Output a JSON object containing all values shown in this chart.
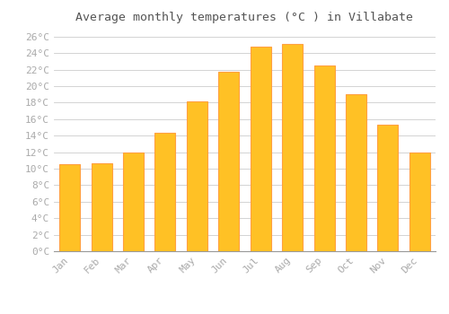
{
  "title": "Average monthly temperatures (°C ) in Villabate",
  "months": [
    "Jan",
    "Feb",
    "Mar",
    "Apr",
    "May",
    "Jun",
    "Jul",
    "Aug",
    "Sep",
    "Oct",
    "Nov",
    "Dec"
  ],
  "values": [
    10.5,
    10.7,
    12.0,
    14.3,
    18.1,
    21.7,
    24.8,
    25.1,
    22.5,
    19.0,
    15.3,
    12.0
  ],
  "bar_color": "#FFC125",
  "bar_edge_color": "#FFA040",
  "background_color": "#ffffff",
  "grid_color": "#cccccc",
  "ylim": [
    0,
    27
  ],
  "yticks": [
    0,
    2,
    4,
    6,
    8,
    10,
    12,
    14,
    16,
    18,
    20,
    22,
    24,
    26
  ],
  "title_fontsize": 9.5,
  "tick_fontsize": 8,
  "tick_font_color": "#aaaaaa",
  "title_color": "#555555"
}
